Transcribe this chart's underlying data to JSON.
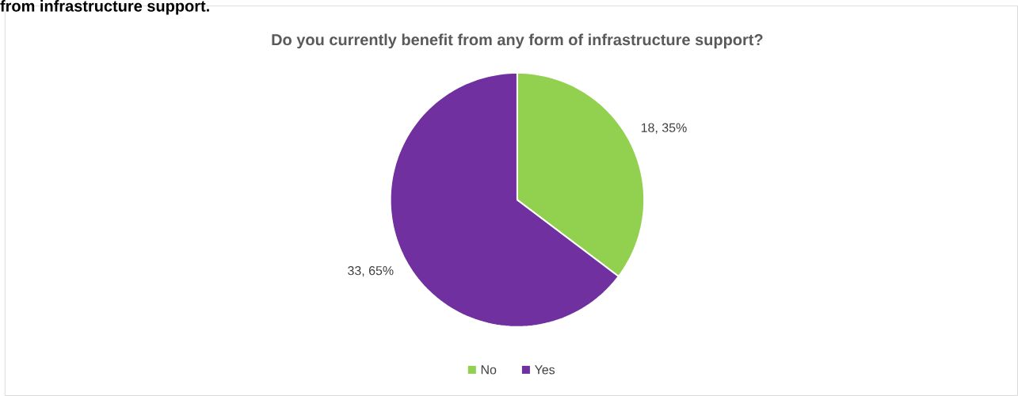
{
  "chart_data": {
    "type": "pie",
    "title": "Do you currently benefit from any form of infrastructure support?",
    "annotations": [
      "from infrastructure support."
    ],
    "categories": [
      "No",
      "Yes"
    ],
    "values": [
      18,
      33
    ],
    "colors": [
      "#92d050",
      "#7030a0"
    ],
    "value_labels": [
      "18, 35%",
      "33, 65%"
    ],
    "legend": "bottom"
  }
}
